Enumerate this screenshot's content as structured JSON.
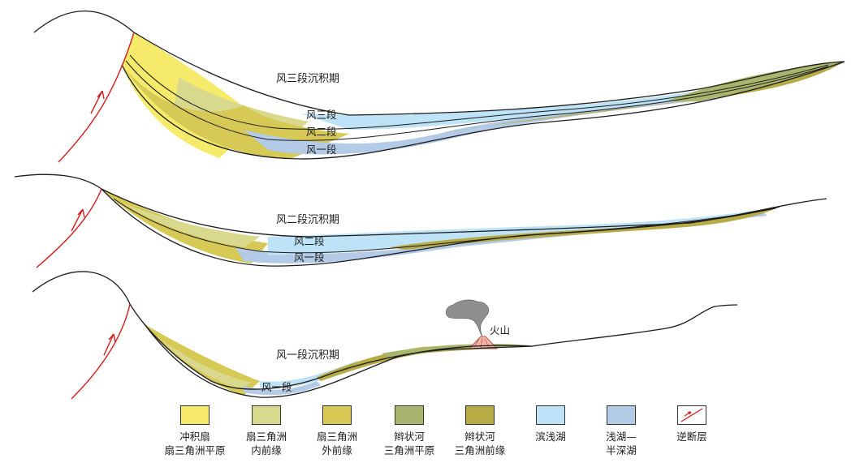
{
  "panels": [
    {
      "period_label": "风三段沉积期",
      "members": [
        "风三段",
        "风二段",
        "风一段"
      ]
    },
    {
      "period_label": "风二段沉积期",
      "members": [
        "风二段",
        "风一段"
      ]
    },
    {
      "period_label": "风一段沉积期",
      "members": [
        "风一段"
      ],
      "volcano_label": "火山"
    }
  ],
  "legend": [
    {
      "line1": "冲积扇",
      "line2": "扇三角洲平原",
      "color": "#f5ea6a",
      "icon": "fill-swatch"
    },
    {
      "line1": "扇三角洲",
      "line2": "内前缘",
      "color": "#d9d98e",
      "icon": "fill-swatch"
    },
    {
      "line1": "扇三角洲",
      "line2": "外前缘",
      "color": "#d6c956",
      "icon": "fill-swatch"
    },
    {
      "line1": "辫状河",
      "line2": "三角洲平原",
      "color": "#a9b56c",
      "icon": "fill-swatch"
    },
    {
      "line1": "辫状河",
      "line2": "三角洲前缘",
      "color": "#b6ab46",
      "icon": "fill-swatch"
    },
    {
      "line1": "滨浅湖",
      "line2": "",
      "color": "#bfe3f6",
      "icon": "fill-swatch"
    },
    {
      "line1": "浅湖—",
      "line2": "半深湖",
      "color": "#b3cbe7",
      "icon": "fill-swatch"
    },
    {
      "line1": "逆断层",
      "line2": "",
      "color": "#d21f1f",
      "icon": "thrust-fault-icon"
    }
  ]
}
